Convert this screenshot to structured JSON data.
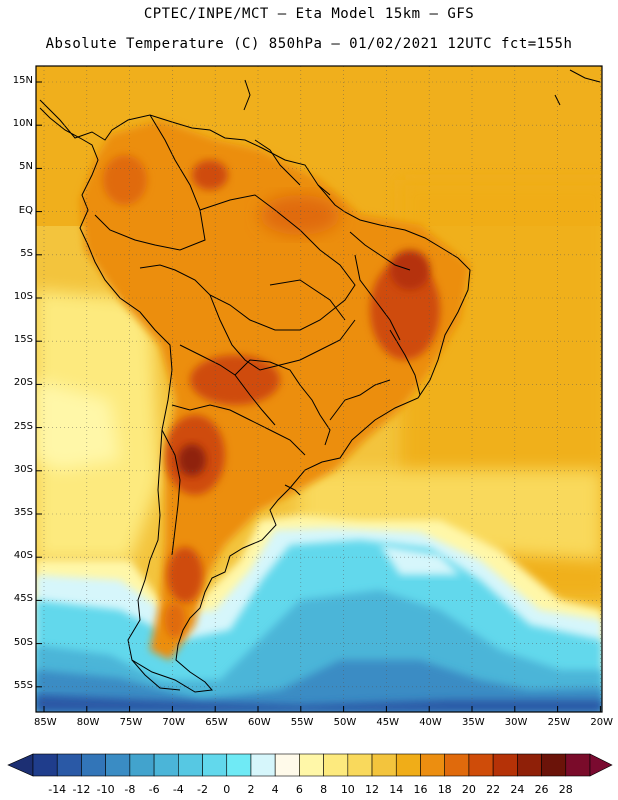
{
  "title": {
    "line1": "CPTEC/INPE/MCT –  Eta Model 15km – GFS",
    "line2": "Absolute Temperature (C) 850hPa – 01/02/2021 12UTC fct=155h"
  },
  "map": {
    "lat_labels": [
      "15N",
      "10N",
      "5N",
      "EQ",
      "5S",
      "10S",
      "15S",
      "20S",
      "25S",
      "30S",
      "35S",
      "40S",
      "45S",
      "50S",
      "55S"
    ],
    "lon_labels": [
      "85W",
      "80W",
      "75W",
      "70W",
      "65W",
      "60W",
      "55W",
      "50W",
      "45W",
      "40W",
      "35W",
      "30W",
      "25W",
      "20W"
    ]
  },
  "colorbar": {
    "labels": [
      "-14",
      "-12",
      "-10",
      "-8",
      "-6",
      "-4",
      "-2",
      "0",
      "2",
      "4",
      "6",
      "8",
      "10",
      "12",
      "14",
      "16",
      "18",
      "20",
      "22",
      "24",
      "26",
      "28"
    ],
    "colors": [
      "#1f3d8c",
      "#2a59a6",
      "#3275b8",
      "#3a8cc4",
      "#42a3cd",
      "#4bb5d8",
      "#56c8e3",
      "#62d8ec",
      "#6feaf5",
      "#d6f6fb",
      "#fffaea",
      "#fff7a8",
      "#fdea7e",
      "#f9d95c",
      "#f3c43d",
      "#f0ad18",
      "#ec8e10",
      "#e06a0c",
      "#cf4c09",
      "#b53207",
      "#8f2008",
      "#6b1309",
      "#7a0b2a"
    ],
    "arrow_left_color": "#1c2f73",
    "arrow_right_color": "#7a0a30"
  }
}
